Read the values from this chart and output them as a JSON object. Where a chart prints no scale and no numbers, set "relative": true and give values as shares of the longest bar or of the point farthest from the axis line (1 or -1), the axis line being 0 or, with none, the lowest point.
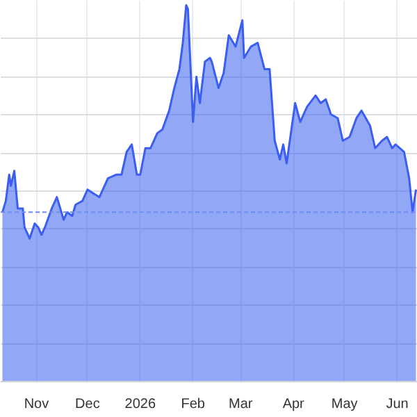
{
  "chart_data": {
    "type": "area",
    "relative": true,
    "grid": true,
    "x": [
      "2025-10-12",
      "2025-10-14",
      "2025-10-16",
      "2025-10-17",
      "2025-10-19",
      "2025-10-21",
      "2025-10-24",
      "2025-10-25",
      "2025-10-28",
      "2025-10-31",
      "2025-11-02",
      "2025-11-04",
      "2025-11-06",
      "2025-11-10",
      "2025-11-13",
      "2025-11-17",
      "2025-11-19",
      "2025-11-22",
      "2025-11-24",
      "2025-11-28",
      "2025-12-01",
      "2025-12-08",
      "2025-12-13",
      "2025-12-18",
      "2025-12-21",
      "2025-12-24",
      "2025-12-27",
      "2025-12-30",
      "2026-01-01",
      "2026-01-04",
      "2026-01-07",
      "2026-01-11",
      "2026-01-14",
      "2026-01-18",
      "2026-01-21",
      "2026-01-24",
      "2026-01-26",
      "2026-01-28",
      "2026-01-29",
      "2026-02-01",
      "2026-02-03",
      "2026-02-05",
      "2026-02-08",
      "2026-02-11",
      "2026-02-12",
      "2026-02-16",
      "2026-02-19",
      "2026-02-22",
      "2026-02-26",
      "2026-03-02",
      "2026-03-03",
      "2026-03-07",
      "2026-03-11",
      "2026-03-15",
      "2026-03-18",
      "2026-03-21",
      "2026-03-24",
      "2026-03-26",
      "2026-03-28",
      "2026-04-02",
      "2026-04-05",
      "2026-04-09",
      "2026-04-14",
      "2026-04-17",
      "2026-04-20",
      "2026-04-23",
      "2026-04-27",
      "2026-04-30",
      "2026-05-04",
      "2026-05-08",
      "2026-05-11",
      "2026-05-16",
      "2026-05-19",
      "2026-05-23",
      "2026-05-26",
      "2026-05-29",
      "2026-05-31",
      "2026-06-05",
      "2026-06-08",
      "2026-06-10",
      "2026-06-12"
    ],
    "series": [
      {
        "color": "#3b5ef0",
        "values": [
          0.45,
          0.48,
          0.55,
          0.52,
          0.56,
          0.46,
          0.46,
          0.41,
          0.38,
          0.42,
          0.41,
          0.39,
          0.41,
          0.46,
          0.49,
          0.43,
          0.45,
          0.44,
          0.47,
          0.48,
          0.51,
          0.49,
          0.54,
          0.55,
          0.55,
          0.61,
          0.63,
          0.55,
          0.55,
          0.62,
          0.62,
          0.66,
          0.67,
          0.72,
          0.78,
          0.83,
          0.9,
          1,
          0.99,
          0.69,
          0.81,
          0.74,
          0.85,
          0.86,
          0.85,
          0.78,
          0.82,
          0.92,
          0.89,
          0.96,
          0.86,
          0.89,
          0.9,
          0.83,
          0.83,
          0.64,
          0.59,
          0.63,
          0.58,
          0.74,
          0.69,
          0.73,
          0.76,
          0.74,
          0.75,
          0.71,
          0.7,
          0.64,
          0.65,
          0.7,
          0.72,
          0.68,
          0.62,
          0.64,
          0.65,
          0.62,
          0.63,
          0.61,
          0.54,
          0.45,
          0.51
        ]
      }
    ],
    "xlim": [
      "2025-10-11",
      "2026-06-13"
    ],
    "xticks": [
      {
        "value": "2025-11-01",
        "label": "Nov"
      },
      {
        "value": "2025-12-01",
        "label": "Dec"
      },
      {
        "value": "2026-01-01",
        "label": "2026"
      },
      {
        "value": "2026-02-01",
        "label": "Feb"
      },
      {
        "value": "2026-03-01",
        "label": "Mar"
      },
      {
        "value": "2026-04-01",
        "label": "Apr"
      },
      {
        "value": "2026-05-01",
        "label": "May"
      },
      {
        "value": "2026-06-01",
        "label": "Jun"
      }
    ],
    "tick_labels": "x",
    "ref_lines": [
      {
        "axis": "y",
        "value": 0.45,
        "label": null,
        "color": "#6f8cf5",
        "line_style": "dashed"
      }
    ]
  }
}
